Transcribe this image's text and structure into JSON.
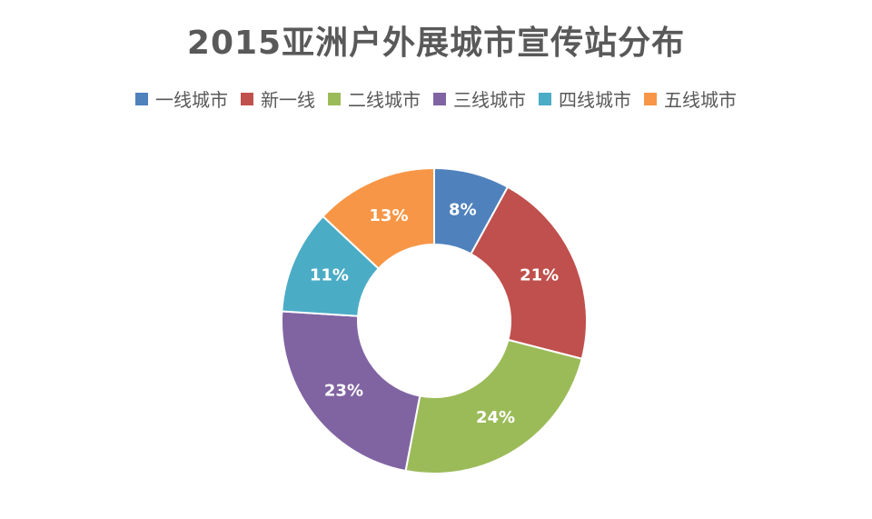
{
  "chart_data": {
    "type": "pie",
    "title": "2015亚洲户外展城市宣传站分布",
    "categories": [
      "一线城市",
      "新一线",
      "二线城市",
      "三线城市",
      "四线城市",
      "五线城市"
    ],
    "values": [
      8,
      21,
      24,
      23,
      11,
      13
    ],
    "value_labels": [
      "8%",
      "21%",
      "24%",
      "23%",
      "11%",
      "13%"
    ],
    "colors": [
      "#4F81BD",
      "#C0504D",
      "#9BBB59",
      "#8064A2",
      "#4BACC6",
      "#F79646"
    ],
    "legend_position": "top",
    "style": "doughnut"
  }
}
